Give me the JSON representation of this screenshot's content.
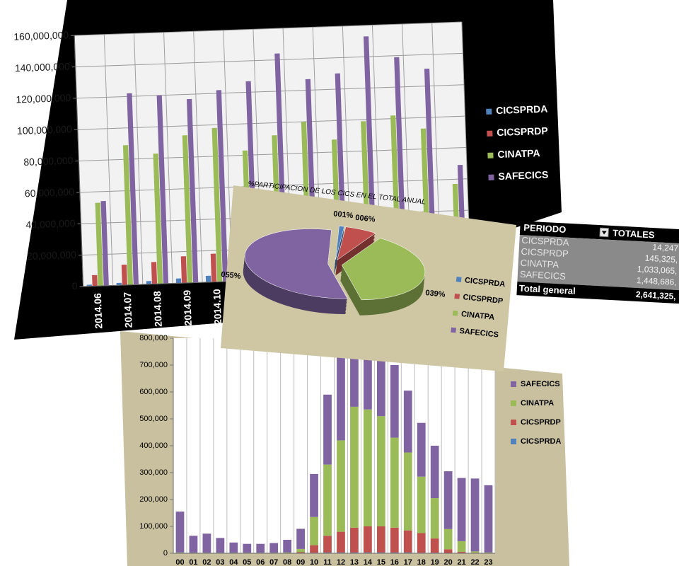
{
  "chart_data": [
    {
      "type": "bar",
      "categories": [
        "2014.06",
        "2014.07",
        "2014.08",
        "2014.09",
        "2014.10",
        null,
        null,
        null,
        null,
        null,
        null,
        null,
        null
      ],
      "series": [
        {
          "name": "CICSPRDA",
          "color": "#4f81bd",
          "values": [
            1000000,
            1500000,
            2000000,
            3000000,
            4000000,
            4000000,
            4000000,
            4000000,
            3500000,
            4000000,
            4000000,
            3500000,
            2000000
          ]
        },
        {
          "name": "CICSPRDP",
          "color": "#c0504d",
          "values": [
            7000000,
            13000000,
            14000000,
            17000000,
            18000000,
            17000000,
            18000000,
            16000000,
            15000000,
            17000000,
            17000000,
            15000000,
            9000000
          ]
        },
        {
          "name": "CINATPA",
          "color": "#9bbb59",
          "values": [
            53000000,
            89000000,
            83000000,
            94000000,
            98000000,
            83000000,
            92000000,
            100000000,
            88000000,
            99000000,
            102000000,
            93000000,
            57000000
          ]
        },
        {
          "name": "SAFECICS",
          "color": "#8064a2",
          "values": [
            54000000,
            122000000,
            120000000,
            117000000,
            122000000,
            127000000,
            144000000,
            127000000,
            130000000,
            153000000,
            139000000,
            131000000,
            69000000
          ]
        }
      ],
      "ylim": [
        0,
        160000000
      ],
      "yticks": [
        0,
        {
          "value": 20000000,
          "label": "20,000,000"
        },
        {
          "value": 40000000,
          "label": "40,000,000"
        },
        {
          "value": 60000000,
          "label": "60,000,000"
        },
        {
          "value": 80000000,
          "label": "80,000,000"
        },
        {
          "value": 100000000,
          "label": "100,000,000"
        },
        {
          "value": 120000000,
          "label": "120,000,000"
        },
        {
          "value": 140000000,
          "label": "140,000,000"
        },
        {
          "value": 160000000,
          "label": "160,000,000"
        }
      ],
      "grid": true,
      "legend": "right"
    },
    {
      "type": "pie",
      "title": "%PARTICIPACION DE LOS CICS EN EL TOTAL ANUAL",
      "categories": [
        "CICSPRDA",
        "CICSPRDP",
        "CINATPA",
        "SAFECICS"
      ],
      "values": [
        1,
        6,
        39,
        55
      ],
      "value_labels": [
        "001%",
        "006%",
        "039%",
        "055%"
      ],
      "colors": [
        "#4f81bd",
        "#c0504d",
        "#9bbb59",
        "#8064a2"
      ],
      "legend": "right"
    },
    {
      "type": "bar",
      "stacked": true,
      "categories": [
        "00",
        "01",
        "02",
        "03",
        "04",
        "05",
        "06",
        "07",
        "08",
        "09",
        "10",
        "11",
        "12",
        "13",
        "14",
        "15",
        "16",
        "17",
        "18",
        "19",
        "20",
        "21",
        "22",
        "23"
      ],
      "series": [
        {
          "name": "CICSPRDA",
          "color": "#4f81bd",
          "values": [
            0,
            0,
            0,
            0,
            0,
            0,
            0,
            0,
            0,
            1000,
            2000,
            3000,
            3000,
            3000,
            3000,
            3000,
            3000,
            3000,
            2000,
            2000,
            1000,
            0,
            0,
            0
          ]
        },
        {
          "name": "CICSPRDP",
          "color": "#c0504d",
          "values": [
            1000,
            1000,
            1000,
            1000,
            1000,
            1000,
            1000,
            1000,
            1000,
            3000,
            28000,
            62000,
            77000,
            92000,
            97000,
            97000,
            92000,
            82000,
            73000,
            53000,
            14000,
            5000,
            2000,
            1000
          ]
        },
        {
          "name": "CINATPA",
          "color": "#9bbb59",
          "values": [
            2000,
            1000,
            1000,
            1000,
            1000,
            1000,
            1000,
            1000,
            2000,
            12000,
            105000,
            265000,
            340000,
            450000,
            435000,
            410000,
            335000,
            290000,
            210000,
            150000,
            75000,
            40000,
            5000,
            2000
          ]
        },
        {
          "name": "SAFECICS",
          "color": "#8064a2",
          "values": [
            152000,
            63000,
            71000,
            55000,
            38000,
            33000,
            33000,
            36000,
            47000,
            75000,
            160000,
            260000,
            340000,
            235000,
            225000,
            210000,
            270000,
            230000,
            200000,
            195000,
            215000,
            235000,
            271000,
            250000
          ]
        }
      ],
      "ylim": [
        0,
        800000
      ],
      "yticks": [
        0,
        {
          "value": 100000,
          "label": "100,000"
        },
        {
          "value": 200000,
          "label": "200,000"
        },
        {
          "value": 300000,
          "label": "300,000"
        },
        {
          "value": 400000,
          "label": "400,000"
        },
        {
          "value": 500000,
          "label": "500,000"
        },
        {
          "value": 600000,
          "label": "600,000"
        },
        {
          "value": 700000,
          "label": "700,000"
        },
        {
          "value": 800000,
          "label": "800,000"
        }
      ],
      "grid": false,
      "legend": "right"
    }
  ],
  "table": {
    "header": [
      "PERIODO",
      "TOTALES"
    ],
    "rows": [
      [
        "CICSPRDA",
        "14,247"
      ],
      [
        "CICSPRDP",
        "145,325,"
      ],
      [
        "CINATPA",
        "1,033,065,"
      ],
      [
        "SAFECICS",
        "1,448,686,"
      ]
    ],
    "total": [
      "Total general",
      "2,641,325,"
    ]
  }
}
